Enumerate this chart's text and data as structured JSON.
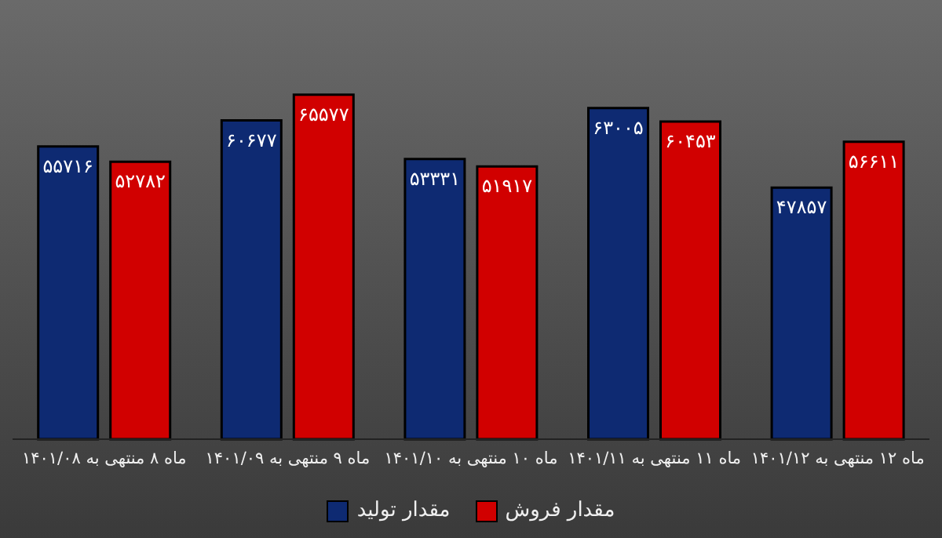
{
  "chart_data": {
    "type": "bar",
    "categories": [
      "ماه ۸ منتهی به ۱۴۰۱/۰۸",
      "ماه ۹ منتهی به ۱۴۰۱/۰۹",
      "ماه ۱۰ منتهی به ۱۴۰۱/۱۰",
      "ماه ۱۱ منتهی به ۱۴۰۱/۱۱",
      "ماه ۱۲ منتهی به ۱۴۰۱/۱۲"
    ],
    "series": [
      {
        "name": "مقدار تولید",
        "color": "#0e2a72",
        "values": [
          55716,
          60677,
          53331,
          63005,
          47857
        ],
        "value_labels": [
          "۵۵۷۱۶",
          "۶۰۶۷۷",
          "۵۳۳۳۱",
          "۶۳۰۰۵",
          "۴۷۸۵۷"
        ]
      },
      {
        "name": "مقدار فروش",
        "color": "#d10000",
        "values": [
          52782,
          65577,
          51917,
          60453,
          56611
        ],
        "value_labels": [
          "۵۲۷۸۲",
          "۶۵۵۷۷",
          "۵۱۹۱۷",
          "۶۰۴۵۳",
          "۵۶۶۱۱"
        ]
      }
    ],
    "legend": "bottom",
    "tick_labels": "x"
  }
}
